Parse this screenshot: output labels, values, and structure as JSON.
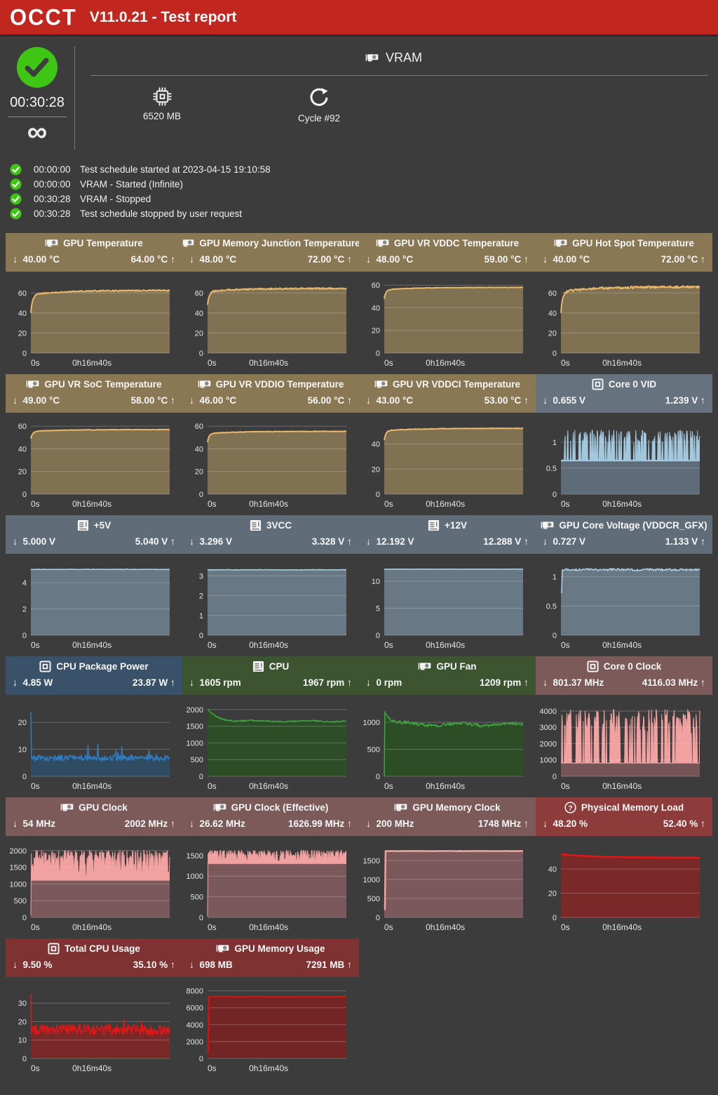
{
  "topbar": {
    "logo": "OCCT",
    "title": "V11.0.21 - Test report"
  },
  "summary": {
    "duration": "00:30:28",
    "infinity": "∞",
    "test_name": "VRAM",
    "test_icon": "gpu-icon",
    "stats": [
      {
        "icon": "chip-icon",
        "label": "6520 MB"
      },
      {
        "icon": "refresh-icon",
        "label": "Cycle #92"
      }
    ]
  },
  "log": [
    {
      "time": "00:00:00",
      "message": "Test schedule started at 2023-04-15 19:10:58"
    },
    {
      "time": "00:00:00",
      "message": "VRAM - Started (Infinite)"
    },
    {
      "time": "00:30:28",
      "message": "VRAM - Stopped"
    },
    {
      "time": "00:30:28",
      "message": "Test schedule stopped by user request"
    }
  ],
  "ui": {
    "min_arrow": "↓",
    "max_arrow": "↑"
  },
  "colors": {
    "accent_red": "#c1271e",
    "success_green": "#3fc615",
    "background": "#3c3c3c",
    "band_tan": "#8a7854",
    "band_gray_blue": "#606d78",
    "band_vid": "#66737e",
    "band_blue": "#3a5269",
    "band_green": "#3c5430",
    "band_mauve": "#7c5a5a",
    "band_red": "#8e3b3b",
    "band_dark_red": "#7e3232"
  },
  "chart_x_labels": [
    "0s",
    "0h16m40s"
  ],
  "groups": [
    {
      "sections": [
        {
          "icon": "gpu-icon",
          "title": "GPU Temperature",
          "min": "40.00 °C",
          "max": "64.00 °C",
          "band": "#8a7854",
          "chart": {
            "seed": 1,
            "type": "area-line",
            "ticks": [
              0,
              20,
              40,
              60
            ],
            "ymax": 70,
            "fill": "#7f7152",
            "line": "#e9b768",
            "lw": 2,
            "gen": {
              "type": "rise",
              "start": 40,
              "settle": 62.5,
              "noise": 0.6
            }
          }
        },
        {
          "icon": "gpu-icon",
          "title": "GPU Memory Junction Temperature",
          "min": "48.00 °C",
          "max": "72.00 °C",
          "band": "#8a7854",
          "chart": {
            "seed": 2,
            "type": "area-line",
            "ticks": [
              0,
              20,
              40,
              60
            ],
            "ymax": 70,
            "fill": "#7f7152",
            "line": "#e9b768",
            "lw": 2,
            "gen": {
              "type": "rise",
              "start": 48,
              "settle": 64.5,
              "noise": 0.7
            }
          }
        },
        {
          "icon": "gpu-icon",
          "title": "GPU VR VDDC Temperature",
          "min": "48.00 °C",
          "max": "59.00 °C",
          "band": "#8a7854",
          "chart": {
            "seed": 3,
            "type": "area-line",
            "ticks": [
              0,
              20,
              40,
              60
            ],
            "ymax": 62,
            "fill": "#7f7152",
            "line": "#e9b768",
            "lw": 2,
            "gen": {
              "type": "rise",
              "start": 48,
              "settle": 58,
              "noise": 0.25
            }
          }
        },
        {
          "icon": "gpu-icon",
          "title": "GPU Hot Spot Temperature",
          "min": "40.00 °C",
          "max": "72.00 °C",
          "band": "#8a7854",
          "chart": {
            "seed": 4,
            "type": "area-line",
            "ticks": [
              0,
              20,
              40,
              60
            ],
            "ymax": 70,
            "fill": "#7f7152",
            "line": "#e9b768",
            "lw": 2,
            "gen": {
              "type": "rise",
              "start": 40,
              "settle": 66,
              "noise": 1.1
            }
          }
        }
      ]
    },
    {
      "sections": [
        {
          "icon": "gpu-icon",
          "title": "GPU VR SoC Temperature",
          "min": "49.00 °C",
          "max": "58.00 °C",
          "band": "#8a7854",
          "chart": {
            "seed": 5,
            "type": "area-line",
            "ticks": [
              0,
              20,
              40,
              60
            ],
            "ymax": 62,
            "fill": "#7f7152",
            "line": "#e9b768",
            "lw": 2,
            "gen": {
              "type": "rise",
              "start": 49,
              "settle": 57,
              "noise": 0.25
            }
          }
        },
        {
          "icon": "gpu-icon",
          "title": "GPU VR VDDIO Temperature",
          "min": "46.00 °C",
          "max": "56.00 °C",
          "band": "#8a7854",
          "chart": {
            "seed": 6,
            "type": "area-line",
            "ticks": [
              0,
              20,
              40,
              60
            ],
            "ymax": 62,
            "fill": "#7f7152",
            "line": "#e9b768",
            "lw": 2,
            "gen": {
              "type": "rise",
              "start": 46,
              "settle": 55.5,
              "noise": 0.25
            }
          }
        },
        {
          "icon": "gpu-icon",
          "title": "GPU VR VDDCI Temperature",
          "min": "43.00 °C",
          "max": "53.00 °C",
          "band": "#8a7854",
          "chart": {
            "seed": 7,
            "type": "area-line",
            "ticks": [
              0,
              20,
              40
            ],
            "ymax": 56,
            "fill": "#7f7152",
            "line": "#e9b768",
            "lw": 2,
            "gen": {
              "type": "rise",
              "start": 43,
              "settle": 52.5,
              "noise": 0.25
            }
          }
        },
        {
          "icon": "core-icon",
          "title": "Core 0 VID",
          "min": "0.655 V",
          "max": "1.239 V",
          "band": "#66737e",
          "chart": {
            "seed": 8,
            "type": "area-spiky",
            "ticks": [
              0,
              0.5,
              1
            ],
            "ymax": 1.35,
            "fill": "#a3c8de",
            "line": "#a3c8de",
            "lw": 1,
            "base_level": 0.63,
            "base_fill": "#5d6c78",
            "gen": {
              "type": "spiky",
              "base": 0.655,
              "high": 1.24,
              "flip": 0.42,
              "noise": 0.004
            }
          }
        }
      ]
    },
    {
      "sections": [
        {
          "icon": "mobo-icon",
          "title": "+5V",
          "min": "5.000 V",
          "max": "5.040 V",
          "band": "#606d78",
          "chart": {
            "seed": 9,
            "type": "area-line",
            "ticks": [
              0,
              2,
              4
            ],
            "ymax": 5.35,
            "fill": "#687885",
            "line": "#abd2e8",
            "lw": 1.5,
            "gen": {
              "type": "flat",
              "level": 5.02,
              "noise": 0.02
            }
          }
        },
        {
          "icon": "mobo-icon",
          "title": "3VCC",
          "min": "3.296 V",
          "max": "3.328 V",
          "band": "#606d78",
          "chart": {
            "seed": 10,
            "type": "area-line",
            "ticks": [
              0,
              1,
              2,
              3
            ],
            "ymax": 3.55,
            "fill": "#687885",
            "line": "#abd2e8",
            "lw": 1.5,
            "gen": {
              "type": "flat",
              "level": 3.31,
              "noise": 0.012
            }
          }
        },
        {
          "icon": "mobo-icon",
          "title": "+12V",
          "min": "12.192 V",
          "max": "12.288 V",
          "band": "#606d78",
          "chart": {
            "seed": 11,
            "type": "area-line",
            "ticks": [
              0,
              5,
              10
            ],
            "ymax": 13,
            "fill": "#687885",
            "line": "#abd2e8",
            "lw": 1.5,
            "gen": {
              "type": "flat",
              "level": 12.24,
              "noise": 0.035
            }
          }
        },
        {
          "icon": "gpu-icon",
          "title": "GPU Core Voltage (VDDCR_GFX)",
          "min": "0.727 V",
          "max": "1.133 V",
          "band": "#606d78",
          "chart": {
            "seed": 12,
            "type": "area-line",
            "ticks": [
              0,
              0.5,
              1
            ],
            "ymax": 1.2,
            "fill": "#687885",
            "line": "#abd2e8",
            "lw": 1.5,
            "gen": {
              "type": "flat",
              "level": 1.12,
              "noise": 0.02,
              "pre": 0.73
            }
          }
        }
      ]
    },
    {
      "sections": [
        {
          "icon": "core-icon",
          "title": "CPU Package Power",
          "min": "4.85 W",
          "max": "23.87 W",
          "band": "#3a5269",
          "chart": {
            "seed": 13,
            "type": "area-line",
            "ticks": [
              0,
              10,
              20
            ],
            "ymax": 26,
            "fill": "#2f4c63",
            "line": "#2e7cc3",
            "lw": 1.5,
            "gen": {
              "type": "noisy",
              "base": 6.8,
              "noise": 1.1,
              "init": 24,
              "spike_prob": 0.06,
              "spike_mag": 4.5
            }
          }
        },
        {
          "icon": "mobo-icon",
          "title": "CPU",
          "min": "1605 rpm",
          "max": "1967 rpm",
          "band": "#3c5430",
          "chart": {
            "seed": 14,
            "type": "area-line",
            "ticks": [
              0,
              500,
              1000,
              1500,
              2000
            ],
            "ymax": 2100,
            "fill": "#2d4d26",
            "line": "#3fa73f",
            "lw": 1.5,
            "gen": {
              "type": "noisy",
              "base": 1650,
              "noise": 20,
              "from": 1990,
              "tau": 0.07,
              "wave": 18,
              "ph": 2
            }
          }
        },
        {
          "icon": "gpu-icon",
          "title": "GPU Fan",
          "min": "0 rpm",
          "max": "1209 rpm",
          "band": "#3c5430",
          "chart": {
            "seed": 15,
            "type": "area-line",
            "ticks": [
              0,
              500,
              1000
            ],
            "ymax": 1300,
            "fill": "#2d4d26",
            "line": "#3fa73f",
            "lw": 1.5,
            "gen": {
              "type": "noisy",
              "base": 960,
              "noise": 28,
              "from": 1225,
              "tau": 0.05,
              "init": 0,
              "wave": 22,
              "ph": 5
            }
          }
        },
        {
          "icon": "core-icon",
          "title": "Core 0 Clock",
          "min": "801.37 MHz",
          "max": "4116.03 MHz",
          "band": "#7c5a5a",
          "chart": {
            "seed": 16,
            "type": "area-spiky",
            "ticks": [
              0,
              1000,
              2000,
              3000,
              4000
            ],
            "ymax": 4300,
            "fill": "#f2a1a1",
            "line": "#f2a1a1",
            "lw": 1,
            "base_level": 790,
            "base_fill": "#745457",
            "gen": {
              "type": "spiky",
              "base": 820,
              "high": 4116,
              "flip": 0.32,
              "noise": 25
            }
          }
        }
      ]
    },
    {
      "sections": [
        {
          "icon": "gpu-icon",
          "title": "GPU Clock",
          "min": "54 MHz",
          "max": "2002 MHz",
          "band": "#7c5a5a",
          "chart": {
            "seed": 17,
            "type": "area-band",
            "ticks": [
              0,
              500,
              1000,
              1500,
              2000
            ],
            "ymax": 2100,
            "fill": "#f2a1a1",
            "line": "#f2a1a1",
            "lw": 1,
            "base_level": 1100,
            "base_fill": "#7a585b",
            "gen": {
              "type": "band",
              "lo": 1150,
              "hi": 2000,
              "bias": 1.6,
              "start0": 60
            }
          }
        },
        {
          "icon": "gpu-icon",
          "title": "GPU Clock (Effective)",
          "min": "26.62 MHz",
          "max": "1626.99 MHz",
          "band": "#7c5a5a",
          "chart": {
            "seed": 18,
            "type": "area-band",
            "ticks": [
              0,
              500,
              1000,
              1500
            ],
            "ymax": 1700,
            "fill": "#f2a1a1",
            "line": "#f2a1a1",
            "lw": 1,
            "base_level": 1295,
            "base_fill": "#7a585b",
            "gen": {
              "type": "band",
              "lo": 1310,
              "hi": 1625,
              "bias": 1.3,
              "start0": 30
            }
          }
        },
        {
          "icon": "gpu-icon",
          "title": "GPU Memory Clock",
          "min": "200 MHz",
          "max": "1748 MHz",
          "band": "#7c5a5a",
          "chart": {
            "seed": 19,
            "type": "area-line",
            "ticks": [
              0,
              500,
              1000,
              1500
            ],
            "ymax": 1850,
            "fill": "#7a585b",
            "line": "#f2a1a1",
            "lw": 2.5,
            "gen": {
              "type": "flat",
              "level": 1748,
              "noise": 5,
              "pre": 210
            }
          }
        },
        {
          "icon": "question-icon",
          "title": "Physical Memory Load",
          "min": "48.20 %",
          "max": "52.40 %",
          "band": "#8e3b3b",
          "chart": {
            "seed": 20,
            "type": "area-line",
            "ticks": [
              0,
              20,
              40
            ],
            "ymax": 58,
            "fill": "#7b2828",
            "line": "#e11616",
            "lw": 2.5,
            "gen": {
              "type": "flat",
              "level": 49.4,
              "noise": 0.15,
              "from": 52.3,
              "tau": 0.22
            }
          }
        }
      ]
    },
    {
      "sections": [
        {
          "icon": "core-icon",
          "title": "Total CPU Usage",
          "min": "9.50 %",
          "max": "35.10 %",
          "band": "#7e3232",
          "chart": {
            "seed": 21,
            "type": "area-line",
            "ticks": [
              0,
              10,
              20,
              30
            ],
            "ymax": 38,
            "fill": "#7b2828",
            "line": "#e11616",
            "lw": 1.5,
            "gen": {
              "type": "noisy",
              "base": 15.5,
              "noise": 3,
              "init": 35,
              "spike_prob": 0.05,
              "spike_mag": 5
            }
          }
        },
        {
          "icon": "gpu-icon",
          "title": "GPU Memory Usage",
          "min": "698 MB",
          "max": "7291 MB",
          "band": "#7e3232",
          "chart": {
            "seed": 22,
            "type": "area-line",
            "ticks": [
              0,
              2000,
              4000,
              6000,
              8000
            ],
            "ymax": 8300,
            "fill": "#732424",
            "line": "#cd1212",
            "lw": 2.5,
            "gen": {
              "type": "flat",
              "level": 7300,
              "noise": 12,
              "pre": 700
            }
          }
        }
      ]
    }
  ]
}
